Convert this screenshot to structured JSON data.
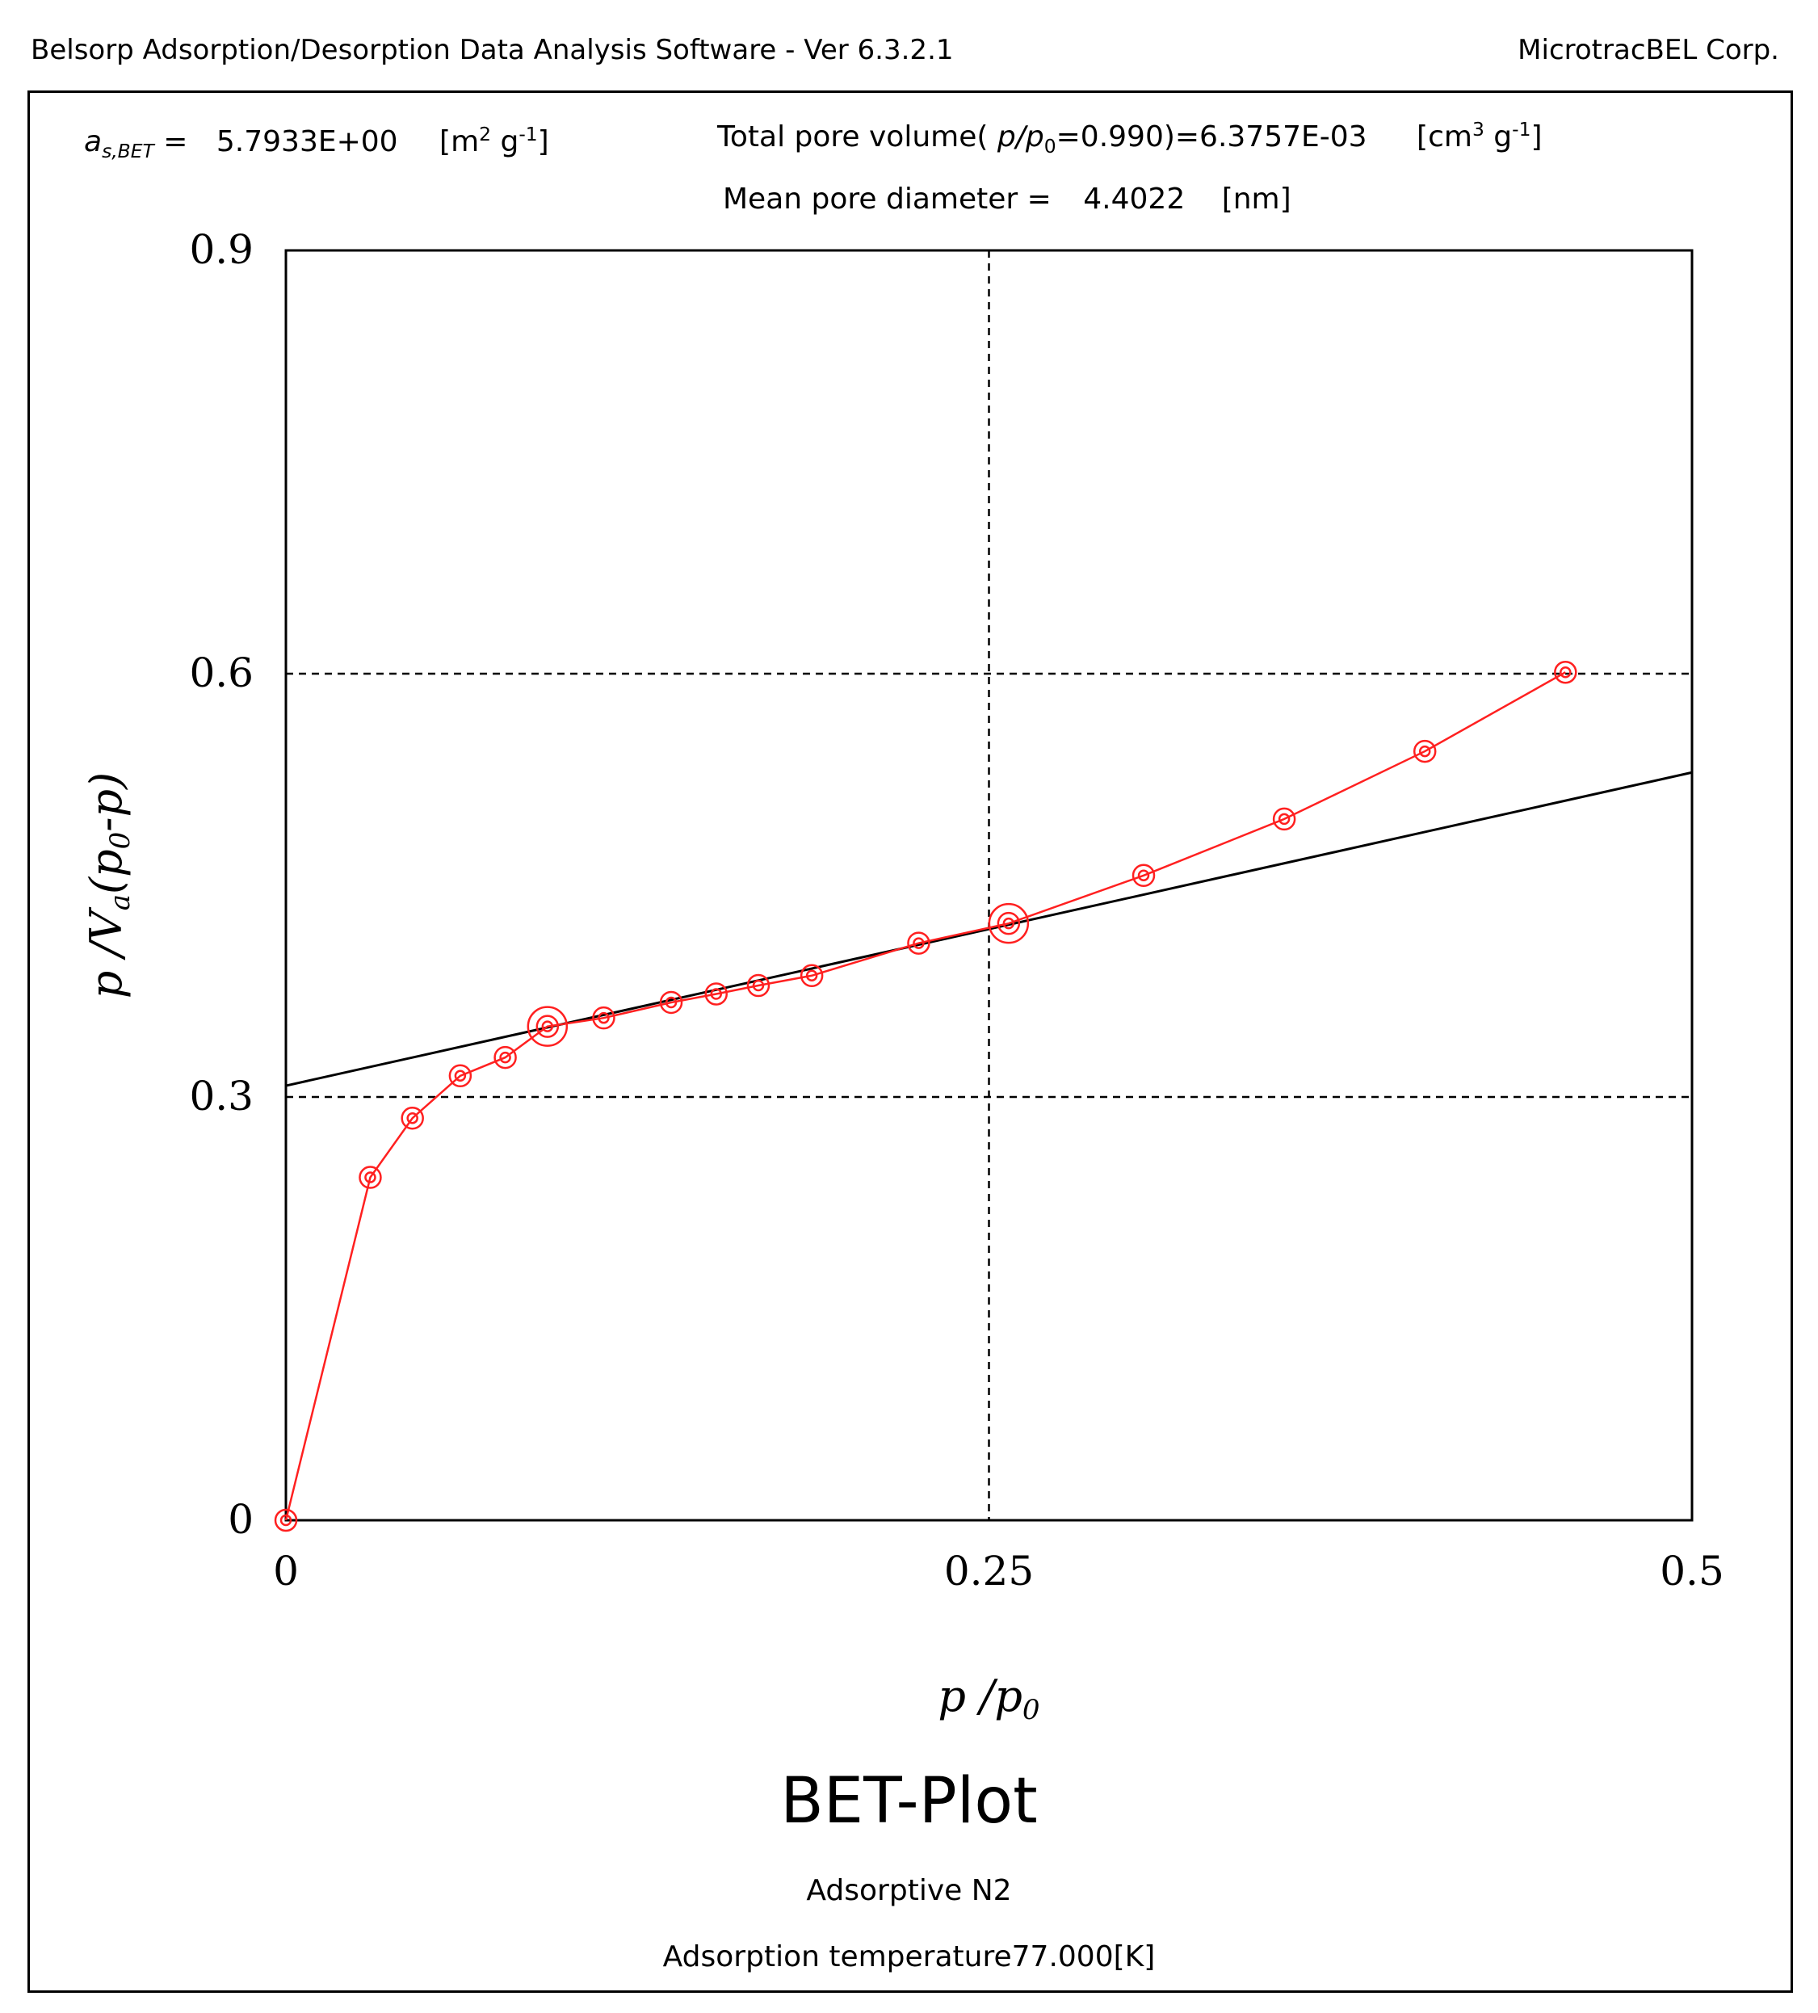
{
  "header": {
    "software": "Belsorp Adsorption/Desorption Data Analysis Software - Ver 6.3.2.1",
    "company": "MicrotracBEL Corp."
  },
  "results": {
    "as_bet_symbol": "a",
    "as_bet_subscript": "s,BET",
    "as_bet_eq": "=",
    "as_bet_value": "5.7933E+00",
    "as_bet_unit_open": "[m",
    "as_bet_unit_sup1": "2",
    "as_bet_unit_mid": " g",
    "as_bet_unit_sup2": "-1",
    "as_bet_unit_close": "]",
    "tpv_label": "Total pore volume(",
    "tpv_p": "p",
    "tpv_slash": "/",
    "tpv_p0": "p",
    "tpv_p0_sub": "0",
    "tpv_rest": "=0.990)=6.3757E-03",
    "tpv_unit_open": "[cm",
    "tpv_unit_sup1": "3",
    "tpv_unit_mid": " g",
    "tpv_unit_sup2": "-1",
    "tpv_unit_close": "]",
    "mpd_label": "Mean pore diameter  =",
    "mpd_value": "4.4022",
    "mpd_unit": "[nm]"
  },
  "chart_data": {
    "type": "scatter",
    "title": "BET-Plot",
    "xlabel": "p /p0",
    "ylabel": "p /Va(p0-p)",
    "xlim": [
      0,
      0.5
    ],
    "ylim": [
      0,
      0.9
    ],
    "x_ticks": [
      {
        "value": 0,
        "label": "0"
      },
      {
        "value": 0.25,
        "label": "0.25"
      },
      {
        "value": 0.5,
        "label": "0.5"
      }
    ],
    "y_ticks": [
      {
        "value": 0,
        "label": "0"
      },
      {
        "value": 0.3,
        "label": "0.3"
      },
      {
        "value": 0.6,
        "label": "0.6"
      },
      {
        "value": 0.9,
        "label": "0.9"
      }
    ],
    "grid": {
      "dashed_x": [
        0.25
      ],
      "dashed_y": [
        0.3,
        0.6
      ]
    },
    "series": [
      {
        "color": "#ff2020",
        "x": [
          0.0,
          0.03,
          0.045,
          0.062,
          0.078,
          0.093,
          0.113,
          0.137,
          0.153,
          0.168,
          0.187,
          0.225,
          0.257,
          0.305,
          0.355,
          0.405,
          0.455
        ],
        "y": [
          0.0,
          0.243,
          0.285,
          0.315,
          0.328,
          0.35,
          0.356,
          0.367,
          0.373,
          0.379,
          0.386,
          0.409,
          0.423,
          0.457,
          0.497,
          0.545,
          0.601
        ],
        "highlighted_x": [
          0.093,
          0.257
        ]
      }
    ],
    "fit_line": {
      "color": "#000000",
      "x": [
        0,
        0.5
      ],
      "y": [
        0.308,
        0.53
      ]
    }
  },
  "footer": {
    "adsorptive": "Adsorptive N2",
    "temperature": "Adsorption temperature77.000[K]"
  }
}
